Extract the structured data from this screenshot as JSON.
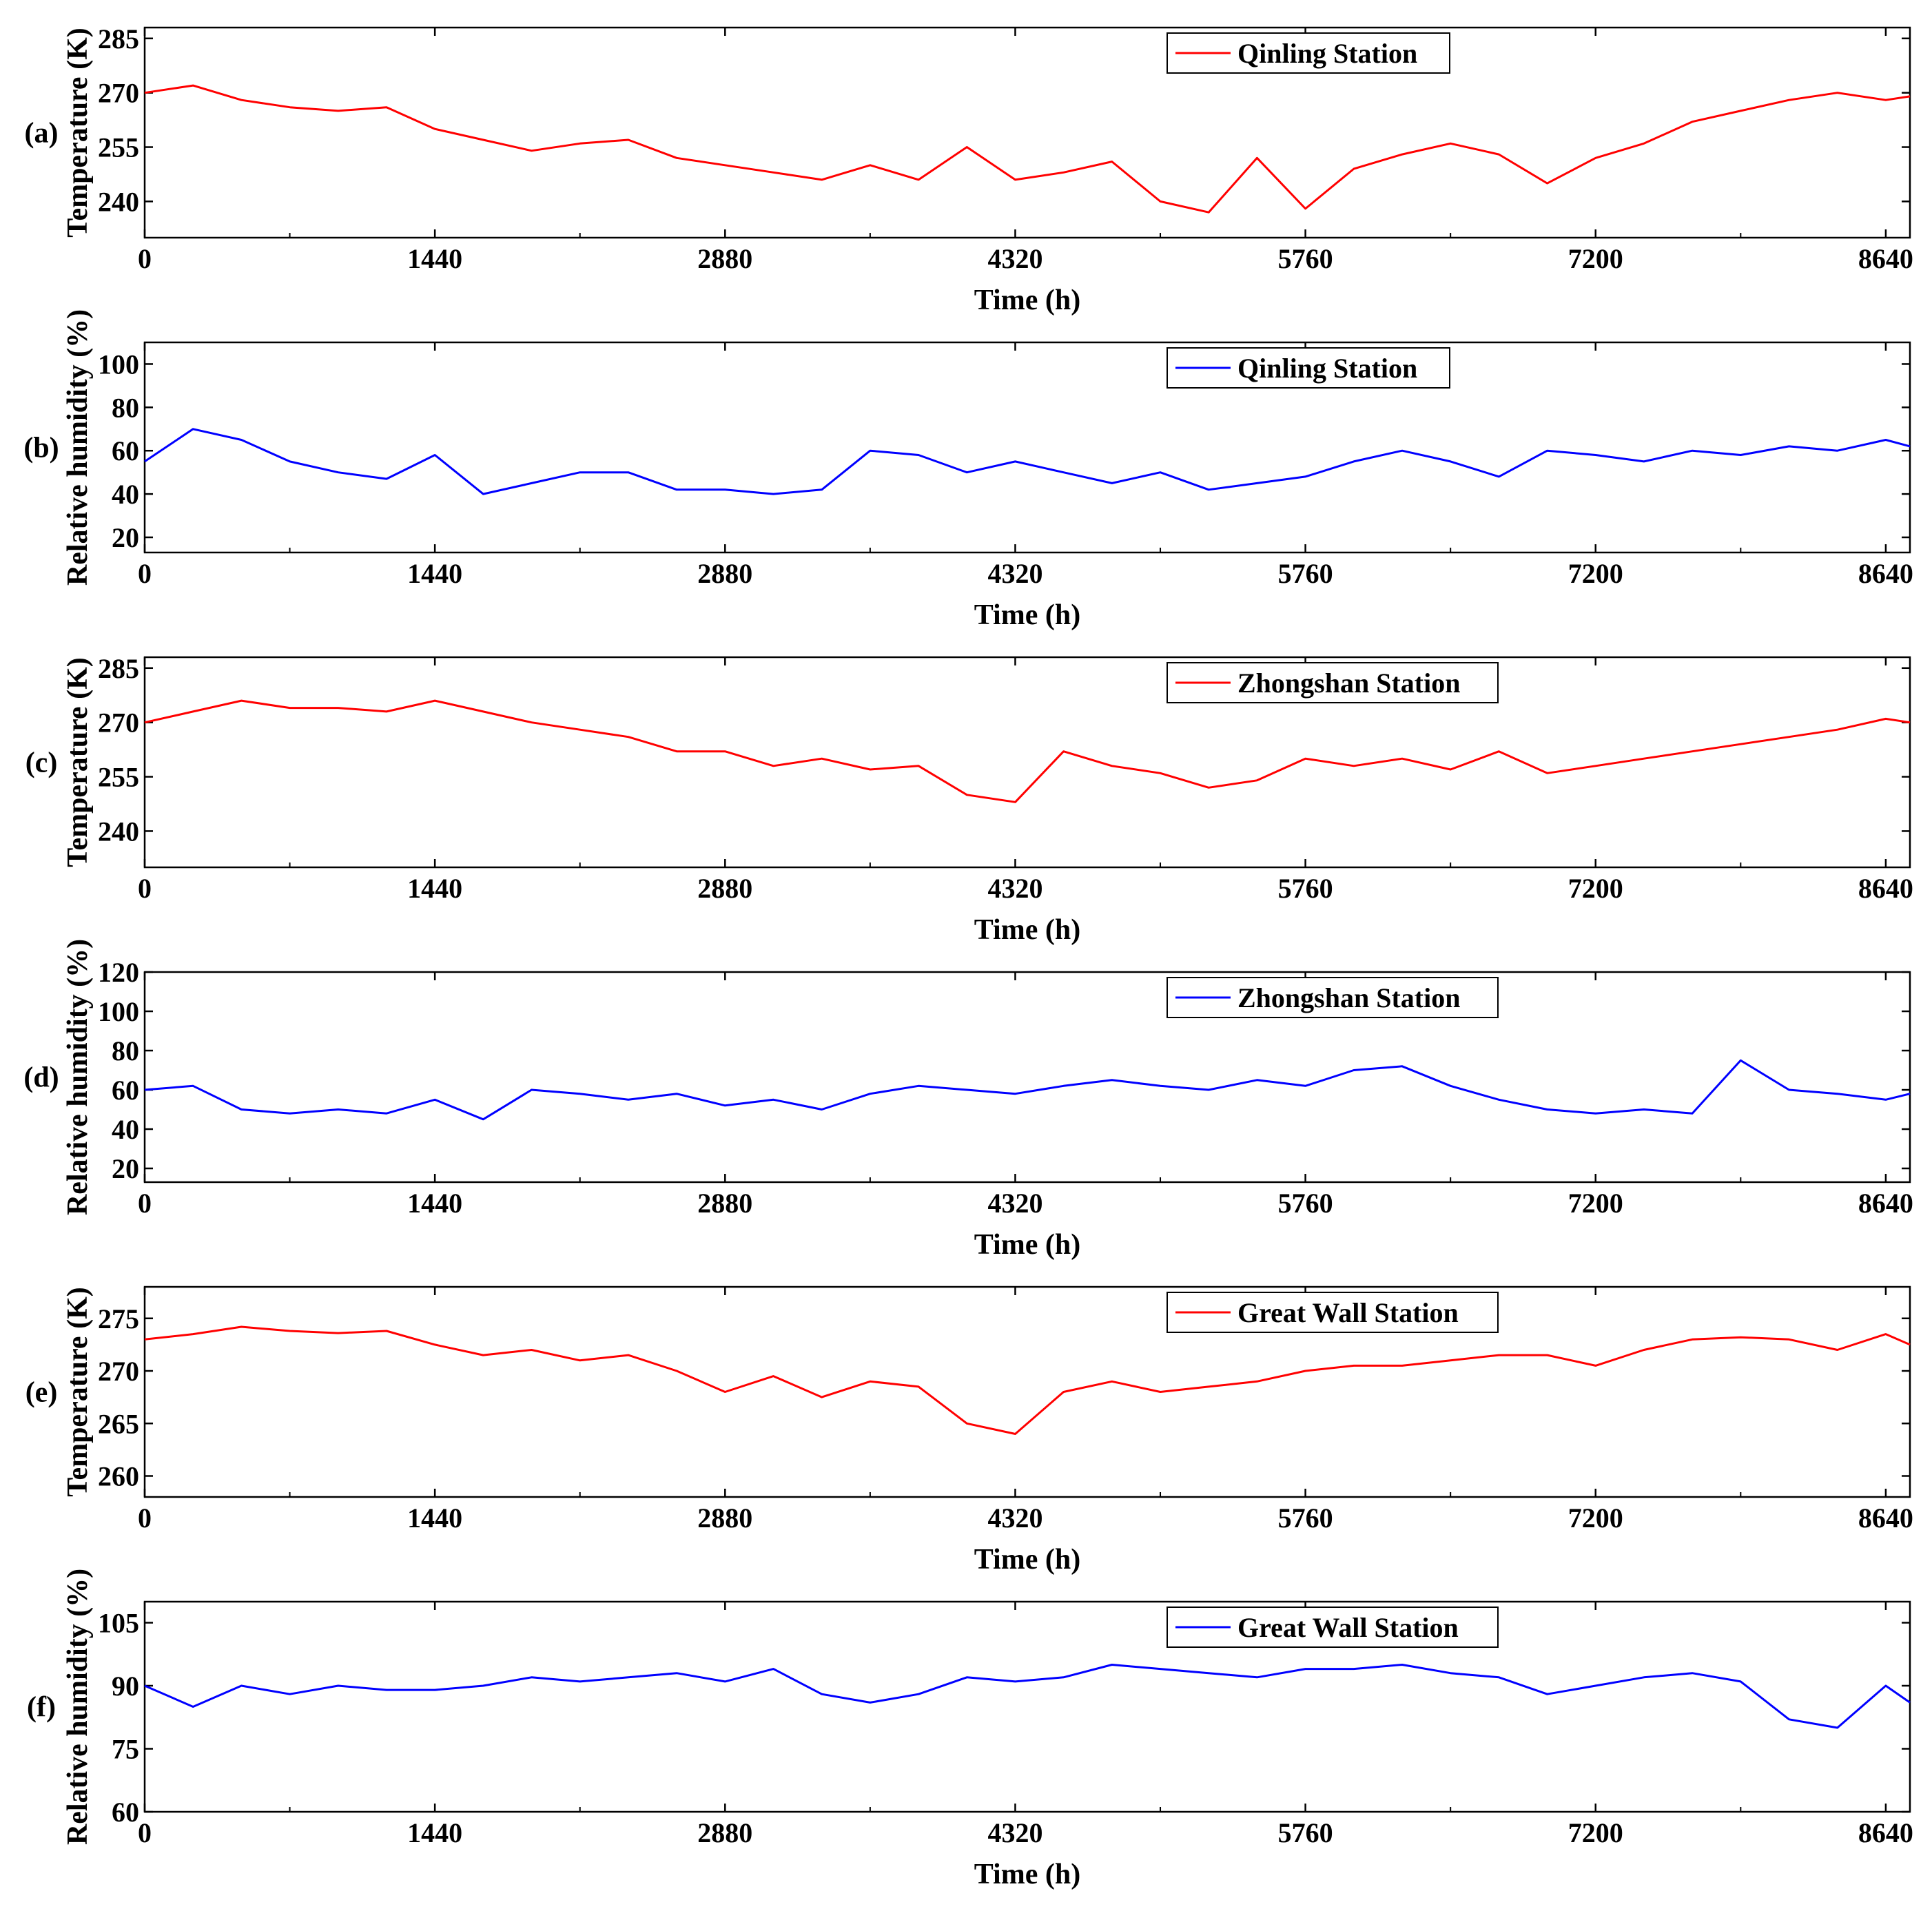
{
  "figure": {
    "x_ticks": [
      "0",
      "1440",
      "2880",
      "4320",
      "5760",
      "7200",
      "8640"
    ],
    "xlim": [
      0,
      8760
    ]
  },
  "panels": [
    {
      "label": "(a)",
      "ylabel": "Temperature (K)",
      "xlabel": "Time (h)",
      "legend": "Qinling Station",
      "color": "#ff0000",
      "y_ticks": [
        "240",
        "255",
        "270",
        "285"
      ],
      "ylim": [
        230,
        288
      ]
    },
    {
      "label": "(b)",
      "ylabel": "Relative humidity (%)",
      "xlabel": "Time (h)",
      "legend": "Qinling Station",
      "color": "#0000ff",
      "y_ticks": [
        "20",
        "40",
        "60",
        "80",
        "100"
      ],
      "ylim": [
        13,
        110
      ]
    },
    {
      "label": "(c)",
      "ylabel": "Temperature (K)",
      "xlabel": "Time (h)",
      "legend": "Zhongshan Station",
      "color": "#ff0000",
      "y_ticks": [
        "240",
        "255",
        "270",
        "285"
      ],
      "ylim": [
        230,
        288
      ]
    },
    {
      "label": "(d)",
      "ylabel": "Relative humidity (%)",
      "xlabel": "Time (h)",
      "legend": "Zhongshan Station",
      "color": "#0000ff",
      "y_ticks": [
        "20",
        "40",
        "60",
        "80",
        "100",
        "120"
      ],
      "ylim": [
        13,
        120
      ]
    },
    {
      "label": "(e)",
      "ylabel": "Temperature (K)",
      "xlabel": "Time (h)",
      "legend": "Great Wall Station",
      "color": "#ff0000",
      "y_ticks": [
        "260",
        "265",
        "270",
        "275"
      ],
      "ylim": [
        258,
        278
      ]
    },
    {
      "label": "(f)",
      "ylabel": "Relative humidity (%)",
      "xlabel": "Time (h)",
      "legend": "Great Wall Station",
      "color": "#0000ff",
      "y_ticks": [
        "60",
        "75",
        "90",
        "105"
      ],
      "ylim": [
        60,
        110
      ]
    }
  ],
  "chart_data": [
    {
      "type": "line",
      "series": [
        {
          "name": "Qinling Station",
          "color": "#ff0000",
          "x": [
            0,
            240,
            480,
            720,
            960,
            1200,
            1440,
            1680,
            1920,
            2160,
            2400,
            2640,
            2880,
            3120,
            3360,
            3600,
            3840,
            4080,
            4320,
            4560,
            4800,
            5040,
            5280,
            5520,
            5760,
            6000,
            6240,
            6480,
            6720,
            6960,
            7200,
            7440,
            7680,
            7920,
            8160,
            8400,
            8640,
            8760
          ],
          "y": [
            270,
            272,
            268,
            266,
            265,
            266,
            260,
            257,
            254,
            256,
            257,
            252,
            250,
            248,
            246,
            250,
            246,
            255,
            246,
            248,
            251,
            240,
            237,
            252,
            238,
            249,
            253,
            256,
            253,
            245,
            252,
            256,
            262,
            265,
            268,
            270,
            268,
            269
          ]
        }
      ],
      "xlabel": "Time (h)",
      "ylabel": "Temperature (K)",
      "xlim": [
        0,
        8760
      ],
      "ylim": [
        230,
        288
      ]
    },
    {
      "type": "line",
      "series": [
        {
          "name": "Qinling Station",
          "color": "#0000ff",
          "x": [
            0,
            240,
            480,
            720,
            960,
            1200,
            1440,
            1680,
            1920,
            2160,
            2400,
            2640,
            2880,
            3120,
            3360,
            3600,
            3840,
            4080,
            4320,
            4560,
            4800,
            5040,
            5280,
            5520,
            5760,
            6000,
            6240,
            6480,
            6720,
            6960,
            7200,
            7440,
            7680,
            7920,
            8160,
            8400,
            8640,
            8760
          ],
          "y": [
            55,
            70,
            65,
            55,
            50,
            47,
            58,
            40,
            45,
            50,
            50,
            42,
            42,
            40,
            42,
            60,
            58,
            50,
            55,
            50,
            45,
            50,
            42,
            45,
            48,
            55,
            60,
            55,
            48,
            60,
            58,
            55,
            60,
            58,
            62,
            60,
            65,
            62
          ]
        }
      ],
      "xlabel": "Time (h)",
      "ylabel": "Relative humidity (%)",
      "xlim": [
        0,
        8760
      ],
      "ylim": [
        13,
        110
      ]
    },
    {
      "type": "line",
      "series": [
        {
          "name": "Zhongshan Station",
          "color": "#ff0000",
          "x": [
            0,
            240,
            480,
            720,
            960,
            1200,
            1440,
            1680,
            1920,
            2160,
            2400,
            2640,
            2880,
            3120,
            3360,
            3600,
            3840,
            4080,
            4320,
            4560,
            4800,
            5040,
            5280,
            5520,
            5760,
            6000,
            6240,
            6480,
            6720,
            6960,
            7200,
            7440,
            7680,
            7920,
            8160,
            8400,
            8640,
            8760
          ],
          "y": [
            270,
            273,
            276,
            274,
            274,
            273,
            276,
            273,
            270,
            268,
            266,
            262,
            262,
            258,
            260,
            257,
            258,
            250,
            248,
            262,
            258,
            256,
            252,
            254,
            260,
            258,
            260,
            257,
            262,
            256,
            258,
            260,
            262,
            264,
            266,
            268,
            271,
            270
          ]
        }
      ],
      "xlabel": "Time (h)",
      "ylabel": "Temperature (K)",
      "xlim": [
        0,
        8760
      ],
      "ylim": [
        230,
        288
      ]
    },
    {
      "type": "line",
      "series": [
        {
          "name": "Zhongshan Station",
          "color": "#0000ff",
          "x": [
            0,
            240,
            480,
            720,
            960,
            1200,
            1440,
            1680,
            1920,
            2160,
            2400,
            2640,
            2880,
            3120,
            3360,
            3600,
            3840,
            4080,
            4320,
            4560,
            4800,
            5040,
            5280,
            5520,
            5760,
            6000,
            6240,
            6480,
            6720,
            6960,
            7200,
            7440,
            7680,
            7920,
            8160,
            8400,
            8640,
            8760
          ],
          "y": [
            60,
            62,
            50,
            48,
            50,
            48,
            55,
            45,
            60,
            58,
            55,
            58,
            52,
            55,
            50,
            58,
            62,
            60,
            58,
            62,
            65,
            62,
            60,
            65,
            62,
            70,
            72,
            62,
            55,
            50,
            48,
            50,
            48,
            75,
            60,
            58,
            55,
            58
          ]
        }
      ],
      "xlabel": "Time (h)",
      "ylabel": "Relative humidity (%)",
      "xlim": [
        0,
        8760
      ],
      "ylim": [
        13,
        120
      ]
    },
    {
      "type": "line",
      "series": [
        {
          "name": "Great Wall Station",
          "color": "#ff0000",
          "x": [
            0,
            240,
            480,
            720,
            960,
            1200,
            1440,
            1680,
            1920,
            2160,
            2400,
            2640,
            2880,
            3120,
            3360,
            3600,
            3840,
            4080,
            4320,
            4560,
            4800,
            5040,
            5280,
            5520,
            5760,
            6000,
            6240,
            6480,
            6720,
            6960,
            7200,
            7440,
            7680,
            7920,
            8160,
            8400,
            8640,
            8760
          ],
          "y": [
            273.0,
            273.5,
            274.2,
            273.8,
            273.6,
            273.8,
            272.5,
            271.5,
            272.0,
            271.0,
            271.5,
            270.0,
            268.0,
            269.5,
            267.5,
            269.0,
            268.5,
            265.0,
            264.0,
            268.0,
            269.0,
            268.0,
            268.5,
            269.0,
            270.0,
            270.5,
            270.5,
            271.0,
            271.5,
            271.5,
            270.5,
            272.0,
            273.0,
            273.2,
            273.0,
            272.0,
            273.5,
            272.5
          ]
        }
      ],
      "xlabel": "Time (h)",
      "ylabel": "Temperature (K)",
      "xlim": [
        0,
        8760
      ],
      "ylim": [
        258,
        278
      ]
    },
    {
      "type": "line",
      "series": [
        {
          "name": "Great Wall Station",
          "color": "#0000ff",
          "x": [
            0,
            240,
            480,
            720,
            960,
            1200,
            1440,
            1680,
            1920,
            2160,
            2400,
            2640,
            2880,
            3120,
            3360,
            3600,
            3840,
            4080,
            4320,
            4560,
            4800,
            5040,
            5280,
            5520,
            5760,
            6000,
            6240,
            6480,
            6720,
            6960,
            7200,
            7440,
            7680,
            7920,
            8160,
            8400,
            8640,
            8760
          ],
          "y": [
            90,
            85,
            90,
            88,
            90,
            89,
            89,
            90,
            92,
            91,
            92,
            93,
            91,
            94,
            88,
            86,
            88,
            92,
            91,
            92,
            95,
            94,
            93,
            92,
            94,
            94,
            95,
            93,
            92,
            88,
            90,
            92,
            93,
            91,
            82,
            80,
            90,
            86
          ]
        }
      ],
      "xlabel": "Time (h)",
      "ylabel": "Relative humidity (%)",
      "xlim": [
        0,
        8760
      ],
      "ylim": [
        60,
        110
      ]
    }
  ]
}
